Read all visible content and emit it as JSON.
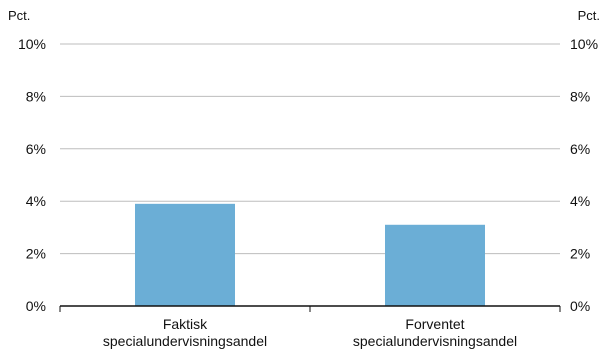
{
  "chart_data": {
    "type": "bar",
    "y_unit_left": "Pct.",
    "y_unit_right": "Pct.",
    "categories": [
      [
        "Faktisk",
        "specialundervisningsandel"
      ],
      [
        "Forventet",
        "specialundervisningsandel"
      ]
    ],
    "values": [
      3.9,
      3.1
    ],
    "ylim": [
      0,
      10
    ],
    "yticks": [
      0,
      2,
      4,
      6,
      8,
      10
    ],
    "ytick_labels": [
      "0%",
      "2%",
      "4%",
      "6%",
      "8%",
      "10%"
    ],
    "grid": true,
    "legend": "none",
    "bar_color": "#6baed6"
  }
}
